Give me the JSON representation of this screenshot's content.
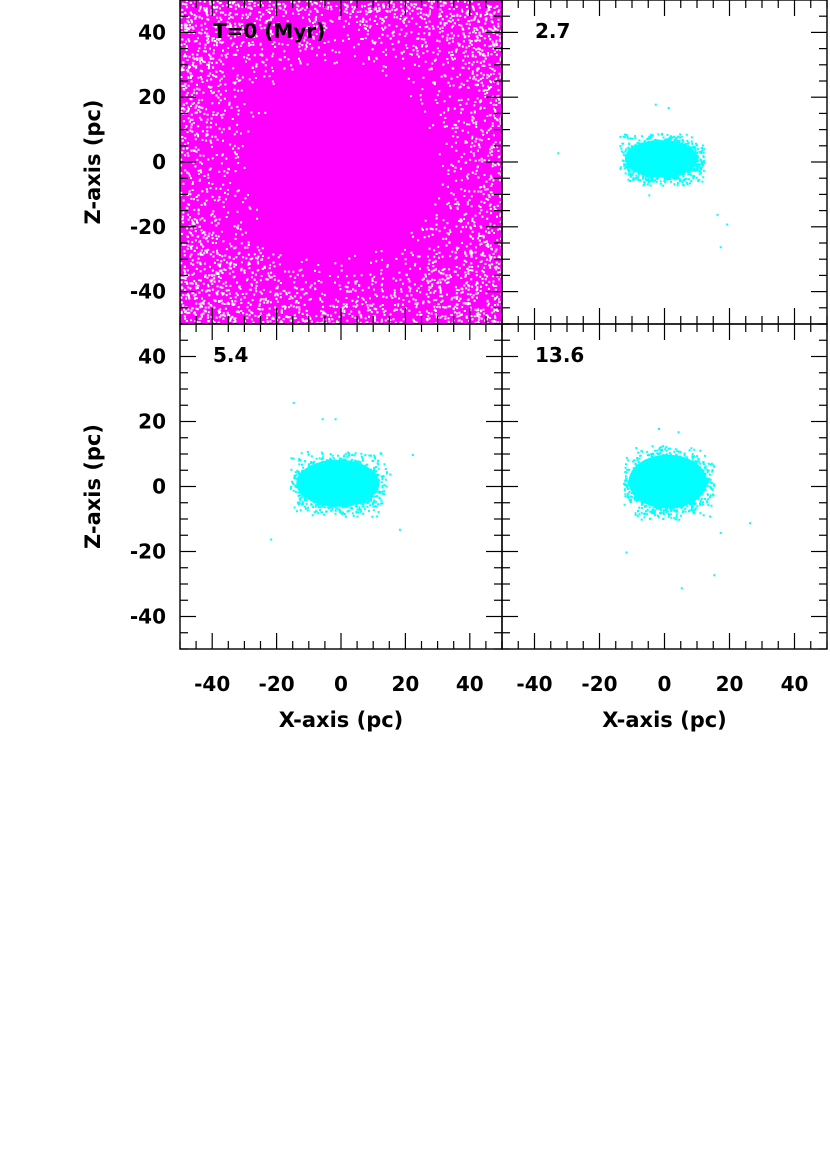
{
  "chart_data": [
    {
      "type": "scatter",
      "panel_label": "T=0 (Myr)",
      "time_myr": 0,
      "point_color": "#ff00ff",
      "distribution": "dense filled square, radially thinning toward edges",
      "xlim": [
        -50,
        50
      ],
      "ylim": [
        -50,
        50
      ],
      "xticks": [
        -40,
        -20,
        0,
        20,
        40
      ],
      "yticks": [
        -40,
        -20,
        0,
        20,
        40
      ],
      "xlabel": "",
      "ylabel": "Z-axis (pc)"
    },
    {
      "type": "scatter",
      "panel_label": "2.7",
      "time_myr": 2.7,
      "point_color": "#00ffff",
      "clump": {
        "x_range": [
          -14,
          12
        ],
        "z_range": [
          -7,
          9
        ]
      },
      "outliers": [
        [
          -33,
          3
        ],
        [
          -3,
          18
        ],
        [
          1,
          17
        ],
        [
          16,
          -16
        ],
        [
          19,
          -19
        ],
        [
          -5,
          -10
        ],
        [
          17,
          -26
        ]
      ],
      "xlim": [
        -50,
        50
      ],
      "ylim": [
        -50,
        50
      ],
      "xticks": [
        -40,
        -20,
        0,
        20,
        40
      ],
      "yticks": [
        -40,
        -20,
        0,
        20,
        40
      ],
      "xlabel": "",
      "ylabel": ""
    },
    {
      "type": "scatter",
      "panel_label": "5.4",
      "time_myr": 5.4,
      "point_color": "#00ffff",
      "clump": {
        "x_range": [
          -16,
          14
        ],
        "z_range": [
          -9,
          11
        ]
      },
      "outliers": [
        [
          -15,
          26
        ],
        [
          -6,
          21
        ],
        [
          -2,
          21
        ],
        [
          -22,
          -16
        ],
        [
          18,
          -13
        ],
        [
          22,
          10
        ],
        [
          15,
          4
        ],
        [
          12,
          -5
        ]
      ],
      "xlim": [
        -50,
        50
      ],
      "ylim": [
        -50,
        50
      ],
      "xticks": [
        -40,
        -20,
        0,
        20,
        40
      ],
      "yticks": [
        -40,
        -20,
        0,
        20,
        40
      ],
      "xlabel": "X-axis (pc)",
      "ylabel": "Z-axis (pc)"
    },
    {
      "type": "scatter",
      "panel_label": "13.6",
      "time_myr": 13.6,
      "point_color": "#00ffff",
      "clump": {
        "x_range": [
          -13,
          15
        ],
        "z_range": [
          -10,
          13
        ]
      },
      "outliers": [
        [
          4,
          17
        ],
        [
          -2,
          18
        ],
        [
          26,
          -11
        ],
        [
          15,
          -27
        ],
        [
          5,
          -31
        ],
        [
          17,
          -14
        ],
        [
          -12,
          -20
        ]
      ],
      "xlim": [
        -50,
        50
      ],
      "ylim": [
        -50,
        50
      ],
      "xticks": [
        -40,
        -20,
        0,
        20,
        40
      ],
      "yticks": [
        -40,
        -20,
        0,
        20,
        40
      ],
      "xlabel": "X-axis (pc)",
      "ylabel": ""
    }
  ]
}
